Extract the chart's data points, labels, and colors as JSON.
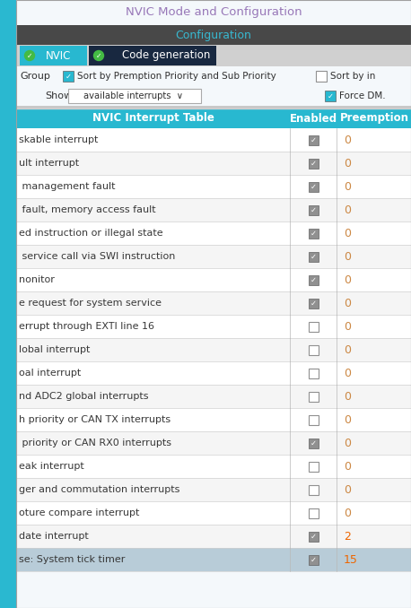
{
  "title": "NVIC Mode and Configuration",
  "config_label": "Configuration",
  "tab1_label": "NVIC",
  "tab2_label": "Code generation",
  "sort_label1": "Sort by Premption Priority and Sub Priority",
  "sort_label2": "Sort by in",
  "show_label": "Show",
  "show_dropdown": "available interrupts ∨",
  "force_label": "Force DM.",
  "header_col1": "NVIC Interrupt Table",
  "header_col2": "Enabled",
  "header_col3": "Preemption",
  "rows": [
    {
      "label": "skable interrupt",
      "checked": true,
      "value": "0"
    },
    {
      "label": "ult interrupt",
      "checked": true,
      "value": "0"
    },
    {
      "label": " management fault",
      "checked": true,
      "value": "0"
    },
    {
      "label": " fault, memory access fault",
      "checked": true,
      "value": "0"
    },
    {
      "label": "ed instruction or illegal state",
      "checked": true,
      "value": "0"
    },
    {
      "label": " service call via SWI instruction",
      "checked": true,
      "value": "0"
    },
    {
      "label": "nonitor",
      "checked": true,
      "value": "0"
    },
    {
      "label": "e request for system service",
      "checked": true,
      "value": "0"
    },
    {
      "label": "errupt through EXTI line 16",
      "checked": false,
      "value": "0"
    },
    {
      "label": "lobal interrupt",
      "checked": false,
      "value": "0"
    },
    {
      "label": "oal interrupt",
      "checked": false,
      "value": "0"
    },
    {
      "label": "nd ADC2 global interrupts",
      "checked": false,
      "value": "0"
    },
    {
      "label": "h priority or CAN TX interrupts",
      "checked": false,
      "value": "0"
    },
    {
      "label": " priority or CAN RX0 interrupts",
      "checked": true,
      "value": "0"
    },
    {
      "label": "eak interrupt",
      "checked": false,
      "value": "0"
    },
    {
      "label": "ger and commutation interrupts",
      "checked": false,
      "value": "0"
    },
    {
      "label": "oture compare interrupt",
      "checked": false,
      "value": "0"
    },
    {
      "label": "date interrupt",
      "checked": true,
      "value": "2"
    },
    {
      "label": "se: System tick timer",
      "checked": true,
      "value": "15",
      "highlighted": true
    }
  ],
  "left_bar_color": "#2ab8d0",
  "outer_bg": "#c8c8c8",
  "title_bg": "#f4f8fb",
  "title_color": "#9878b8",
  "config_bg": "#484848",
  "config_color": "#38b8d0",
  "tab_row_bg": "#d0d0d0",
  "tab_nvic_bg": "#28b8d0",
  "tab_code_bg": "#182840",
  "tab_text": "#ffffff",
  "green_check_bg": "#44bb44",
  "controls_bg": "#f4f8fb",
  "ctrl_text": "#303030",
  "cb_blue_bg": "#28b8d0",
  "cb_gray_bg": "#909090",
  "cb_white_bg": "#ffffff",
  "cb_border": "#909090",
  "cb_check": "#ffffff",
  "header_bg": "#28b8d0",
  "header_text": "#ffffff",
  "row_even_bg": "#ffffff",
  "row_odd_bg": "#f5f5f5",
  "row_highlight_bg": "#b8ccd8",
  "row_text": "#383838",
  "val_color_zero": "#cc8844",
  "val_color_nonzero": "#ee6600",
  "sep_color": "#d0d0d0",
  "sep_color2": "#b8b8b8"
}
